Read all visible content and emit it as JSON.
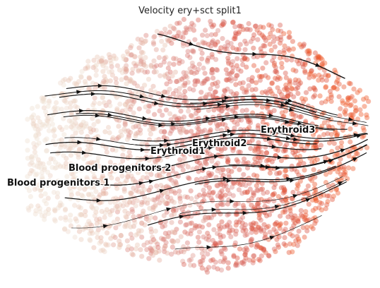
{
  "chart_data": {
    "type": "scatter",
    "title": "Velocity ery+sct split1",
    "xlabel": "",
    "ylabel": "",
    "grid": false,
    "overlay": "velocity streamlines with arrowheads (black), flowing left to right",
    "color_gradient": [
      "#efdfd2",
      "#e8c2b0",
      "#d97c77",
      "#d9503f",
      "#ee5a2c"
    ],
    "clusters": [
      {
        "label": "Blood progenitors 1"
      },
      {
        "label": "Blood progenitors 2"
      },
      {
        "label": "Erythroid1"
      },
      {
        "label": "Erythroid2"
      },
      {
        "label": "Erythroid3"
      }
    ]
  }
}
